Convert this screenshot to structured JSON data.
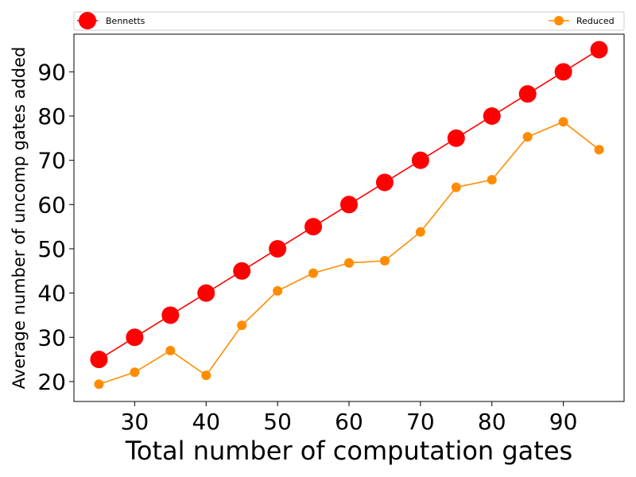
{
  "chart_data": {
    "type": "line",
    "title": "",
    "xlabel": "Total number of computation gates",
    "ylabel": "Average number of uncomp gates added",
    "x": [
      25,
      30,
      35,
      40,
      45,
      50,
      55,
      60,
      65,
      70,
      75,
      80,
      85,
      90,
      95
    ],
    "xlim": [
      21.5,
      98.5
    ],
    "ylim": [
      15.5,
      98.5
    ],
    "xticks": [
      30,
      40,
      50,
      60,
      70,
      80,
      90
    ],
    "yticks": [
      20,
      30,
      40,
      50,
      60,
      70,
      80,
      90
    ],
    "grid": false,
    "legend_placement": "top",
    "series": [
      {
        "name": "Bennetts",
        "color": "#ff0000",
        "marker": "large-circle",
        "values": [
          25,
          30,
          35,
          40,
          45,
          50,
          55,
          60,
          65,
          70,
          75,
          80,
          85,
          90,
          95
        ]
      },
      {
        "name": "Reduced",
        "color": "#ff8c00",
        "marker": "small-circle",
        "values": [
          19.4,
          22.1,
          27.0,
          21.4,
          32.7,
          40.5,
          44.5,
          46.8,
          47.3,
          53.8,
          63.9,
          65.6,
          75.3,
          78.7,
          72.4
        ]
      }
    ]
  }
}
